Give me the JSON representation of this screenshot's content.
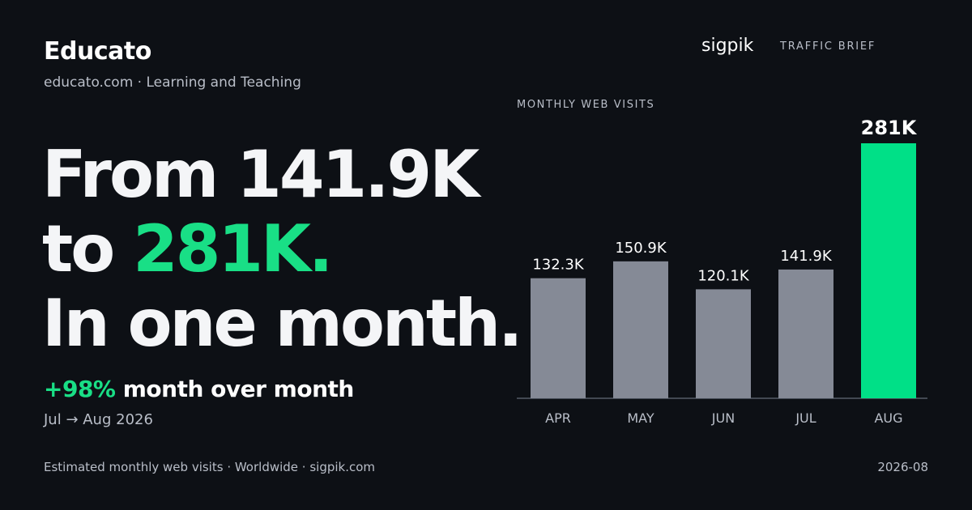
{
  "brand": {
    "name": "Educato",
    "subline": "educato.com · Learning and Teaching"
  },
  "header": {
    "logo": "sigpik",
    "tag": "TRAFFIC BRIEF"
  },
  "headline": {
    "line1": "From 141.9K",
    "line2_prefix": "to ",
    "line2_highlight": "281K.",
    "line3": "In one month."
  },
  "change": {
    "value": "+98%",
    "label": "month over month",
    "range": "Jul → Aug 2026"
  },
  "footer": {
    "source": "Estimated monthly web visits · Worldwide · sigpik.com",
    "period": "2026-08"
  },
  "colors": {
    "background": "#0d1015",
    "accent": "#19df86",
    "bar_default": "#858a96",
    "bar_highlight": "#00e087",
    "axis": "#555b66",
    "muted_text": "#b9bec8"
  },
  "chart_data": {
    "type": "bar",
    "title": "MONTHLY WEB VISITS",
    "categories": [
      "APR",
      "MAY",
      "JUN",
      "JUL",
      "AUG"
    ],
    "values": [
      132300,
      150900,
      120100,
      141900,
      281000
    ],
    "value_labels": [
      "132.3K",
      "150.9K",
      "120.1K",
      "141.9K",
      "281K"
    ],
    "highlight_index": 4,
    "ylim": [
      0,
      281000
    ],
    "grid": false,
    "legend": "none"
  }
}
